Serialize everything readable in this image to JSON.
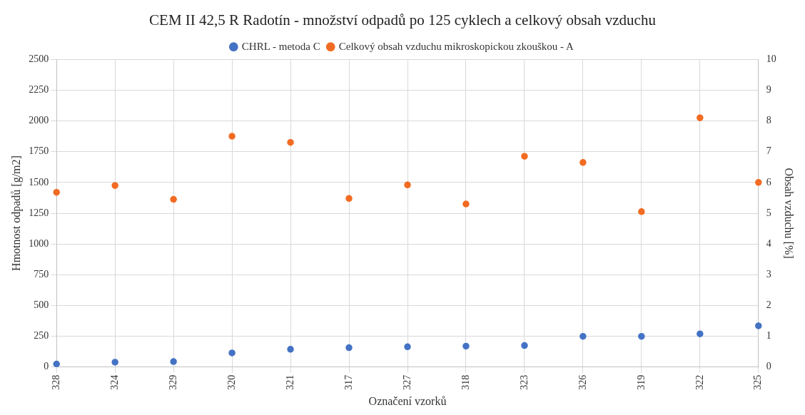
{
  "chart_data": {
    "type": "scatter",
    "title": "CEM II 42,5 R Radotín - množství odpadů po 125 cyklech a celkový obsah vzduchu",
    "xlabel": "Označení vzorků",
    "ylabel": "Hmotnost odpadů [g/m2]",
    "y2label": "Obsah vzduchu [%]",
    "categories": [
      "328",
      "324",
      "329",
      "320",
      "321",
      "317",
      "327",
      "318",
      "323",
      "326",
      "319",
      "322",
      "325"
    ],
    "series": [
      {
        "name": "CHRL - metoda C",
        "color": "#4472c4",
        "values": [
          25,
          40,
          45,
          115,
          145,
          158,
          165,
          170,
          175,
          250,
          250,
          270,
          335
        ]
      },
      {
        "name": "Celkový obsah vzduchu mikroskopickou zkouškou - A",
        "color": "#f26b22",
        "axis": "y2",
        "values": [
          5.68,
          5.9,
          5.45,
          7.5,
          7.3,
          5.48,
          5.92,
          5.3,
          6.85,
          6.65,
          5.05,
          8.1,
          6.0
        ]
      }
    ],
    "ylim": [
      0,
      2500
    ],
    "yticks": [
      0,
      250,
      500,
      750,
      1000,
      1250,
      1500,
      1750,
      2000,
      2250,
      2500
    ],
    "y2lim": [
      0,
      10
    ],
    "y2ticks": [
      0,
      1,
      2,
      3,
      4,
      5,
      6,
      7,
      8,
      9,
      10
    ],
    "grid": true,
    "legend": "top",
    "marker": "circle"
  }
}
